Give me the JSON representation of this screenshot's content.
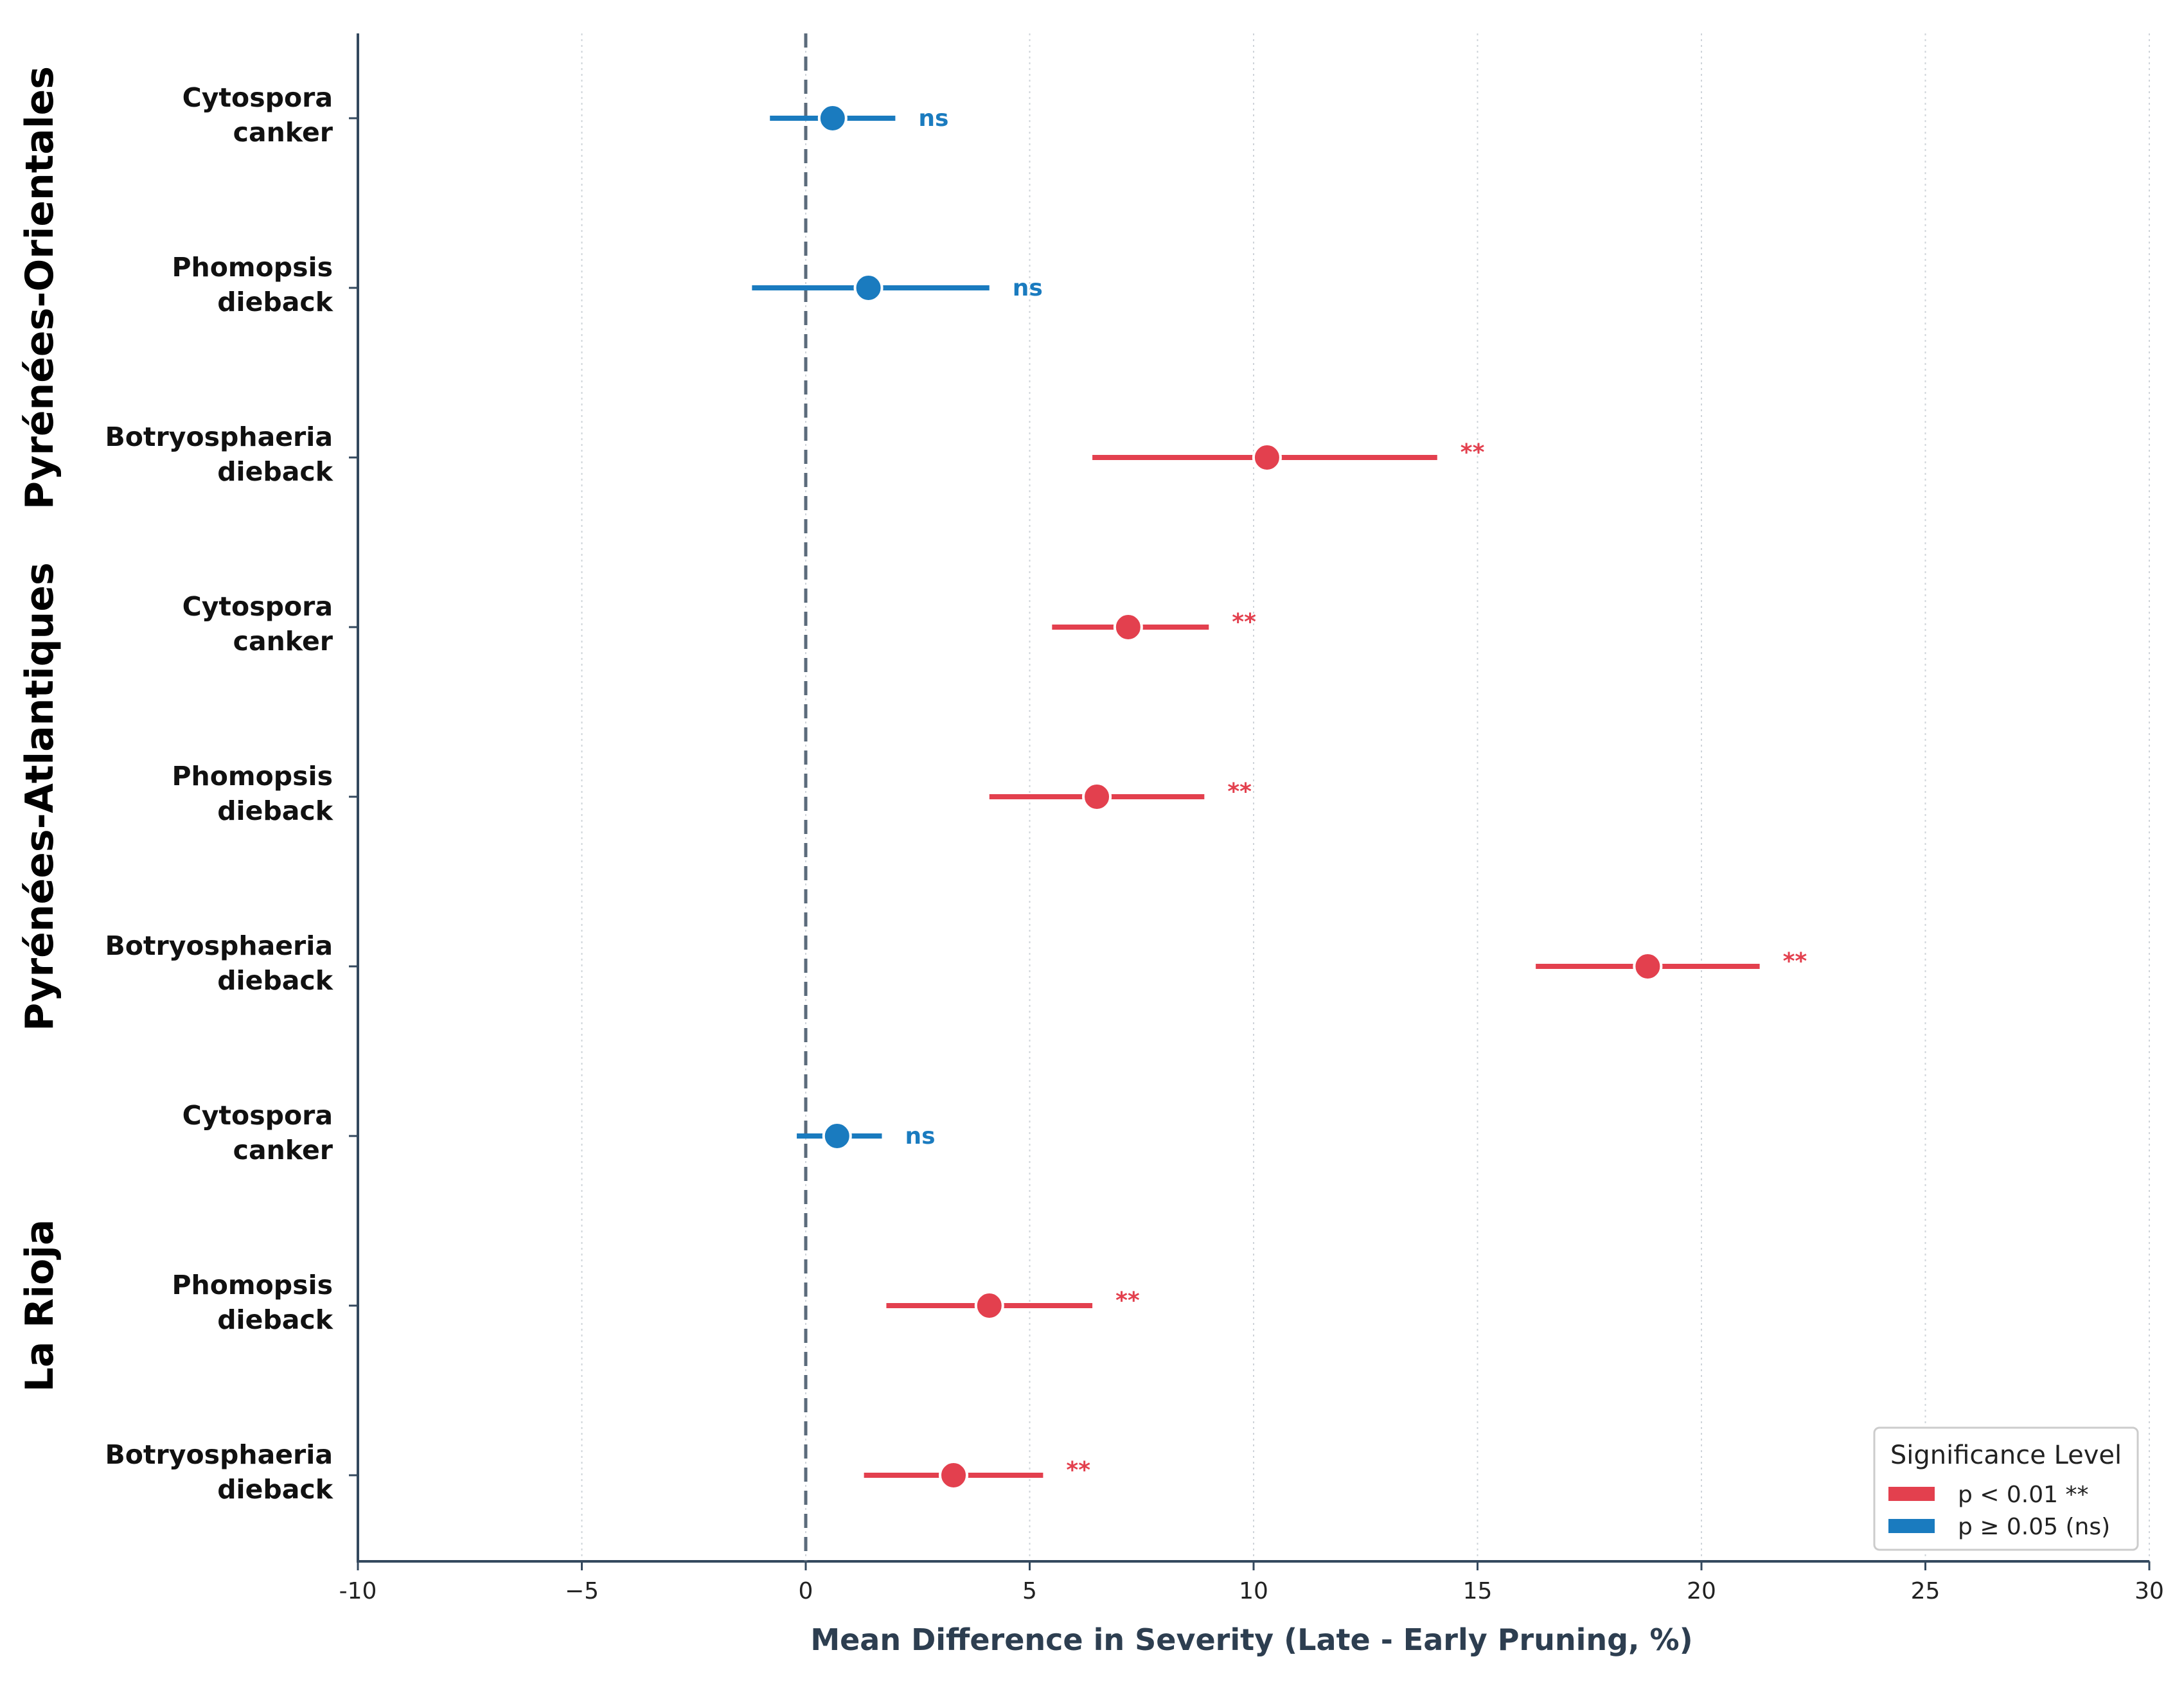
{
  "chart_data": {
    "type": "scatter",
    "title": "",
    "xlabel": "Mean Difference in Severity (Late - Early Pruning, %)",
    "ylabel": "",
    "xlim": [
      -10,
      30
    ],
    "xticks": [
      -10,
      -5,
      0,
      5,
      10,
      15,
      20,
      25,
      30
    ],
    "xtick_labels": [
      "-10",
      "−5",
      "0",
      "5",
      "10",
      "15",
      "20",
      "25",
      "30"
    ],
    "grid": "vertical dotted",
    "reference_line_x": 0,
    "groups": [
      {
        "name": "Pyrénées-Orientales",
        "rows": [
          0,
          1,
          2
        ]
      },
      {
        "name": "Pyrénées-Atlantiques",
        "rows": [
          3,
          4,
          5
        ]
      },
      {
        "name": "La Rioja",
        "rows": [
          6,
          7,
          8
        ]
      }
    ],
    "rows": [
      {
        "label_line1": "Cytospora",
        "label_line2": "canker",
        "mean": 0.6,
        "ci_low": -0.8,
        "ci_high": 2.0,
        "sig": "ns"
      },
      {
        "label_line1": "Phomopsis",
        "label_line2": "dieback",
        "mean": 1.4,
        "ci_low": -1.2,
        "ci_high": 4.1,
        "sig": "ns"
      },
      {
        "label_line1": "Botryosphaeria",
        "label_line2": "dieback",
        "mean": 10.3,
        "ci_low": 6.4,
        "ci_high": 14.1,
        "sig": "**"
      },
      {
        "label_line1": "Cytospora",
        "label_line2": "canker",
        "mean": 7.2,
        "ci_low": 5.5,
        "ci_high": 9.0,
        "sig": "**"
      },
      {
        "label_line1": "Phomopsis",
        "label_line2": "dieback",
        "mean": 6.5,
        "ci_low": 4.1,
        "ci_high": 8.9,
        "sig": "**"
      },
      {
        "label_line1": "Botryosphaeria",
        "label_line2": "dieback",
        "mean": 18.8,
        "ci_low": 16.3,
        "ci_high": 21.3,
        "sig": "**"
      },
      {
        "label_line1": "Cytospora",
        "label_line2": "canker",
        "mean": 0.7,
        "ci_low": -0.2,
        "ci_high": 1.7,
        "sig": "ns"
      },
      {
        "label_line1": "Phomopsis",
        "label_line2": "dieback",
        "mean": 4.1,
        "ci_low": 1.8,
        "ci_high": 6.4,
        "sig": "**"
      },
      {
        "label_line1": "Botryosphaeria",
        "label_line2": "dieback",
        "mean": 3.3,
        "ci_low": 1.3,
        "ci_high": 5.3,
        "sig": "**"
      }
    ],
    "colors": {
      "significant": "#e3404e",
      "ns": "#1a7bbf"
    },
    "legend": {
      "title": "Significance Level",
      "position": "lower-right",
      "entries": [
        {
          "label": "p < 0.01 **",
          "color": "#e3404e"
        },
        {
          "label": "p ≥ 0.05 (ns)",
          "color": "#1a7bbf"
        }
      ]
    }
  }
}
